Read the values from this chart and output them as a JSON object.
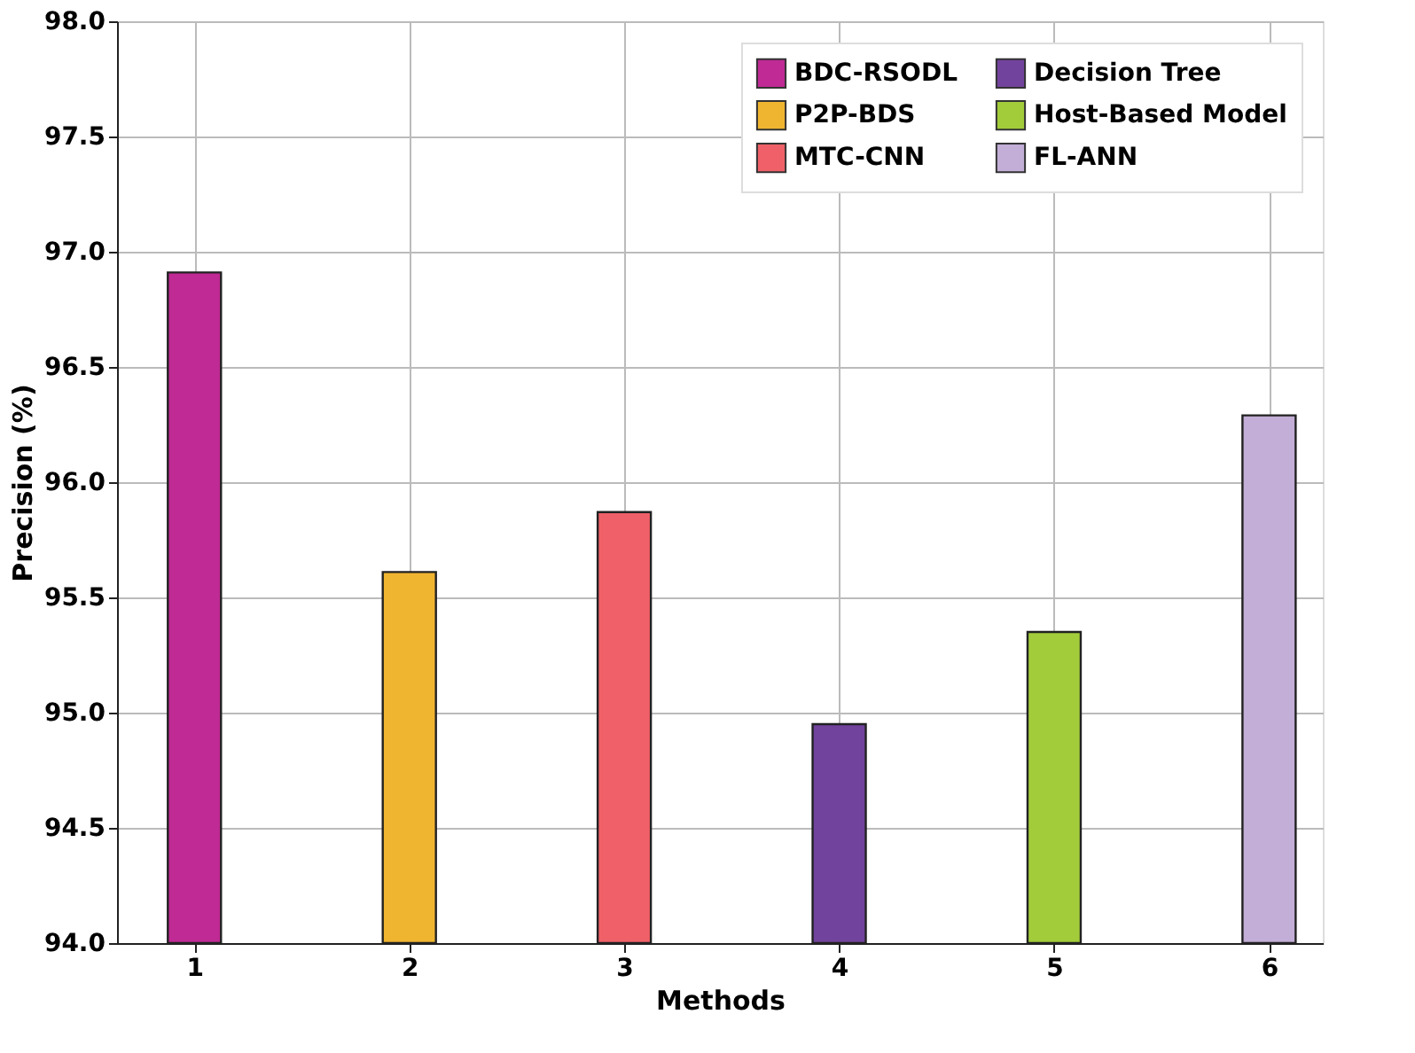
{
  "chart_data": {
    "type": "bar",
    "xlabel": "Methods",
    "ylabel": "Precision (%)",
    "x": [
      1,
      2,
      3,
      4,
      5,
      6
    ],
    "series": [
      {
        "name": "BDC-RSODL",
        "color": "#bf2a94",
        "values": [
          96.91,
          null,
          null,
          null,
          null,
          null
        ]
      },
      {
        "name": "P2P-BDS",
        "color": "#f0b530",
        "values": [
          null,
          95.61,
          null,
          null,
          null,
          null
        ]
      },
      {
        "name": "MTC-CNN",
        "color": "#f06068",
        "values": [
          null,
          null,
          95.87,
          null,
          null,
          null
        ]
      },
      {
        "name": "Decision Tree",
        "color": "#72439c",
        "values": [
          null,
          null,
          null,
          94.95,
          null,
          null
        ]
      },
      {
        "name": "Host-Based Model",
        "color": "#a2cc3a",
        "values": [
          null,
          null,
          null,
          null,
          95.35,
          null
        ]
      },
      {
        "name": "FL-ANN",
        "color": "#c2aed6",
        "values": [
          null,
          null,
          null,
          null,
          null,
          96.29
        ]
      }
    ],
    "xlim": [
      0.64,
      6.25
    ],
    "xticks": [
      1,
      2,
      3,
      4,
      5,
      6
    ],
    "ylim": [
      94.0,
      98.0
    ],
    "yticks": [
      {
        "value": 94,
        "label": "94.0"
      },
      {
        "value": 94.5,
        "label": "94.5"
      },
      {
        "value": 95,
        "label": "95.0"
      },
      {
        "value": 95.5,
        "label": "95.5"
      },
      {
        "value": 96,
        "label": "96.0"
      },
      {
        "value": 96.5,
        "label": "96.5"
      },
      {
        "value": 97,
        "label": "97.0"
      },
      {
        "value": 97.5,
        "label": "97.5"
      },
      {
        "value": 98,
        "label": "98.0"
      }
    ],
    "grid": true,
    "legend": "top right"
  }
}
